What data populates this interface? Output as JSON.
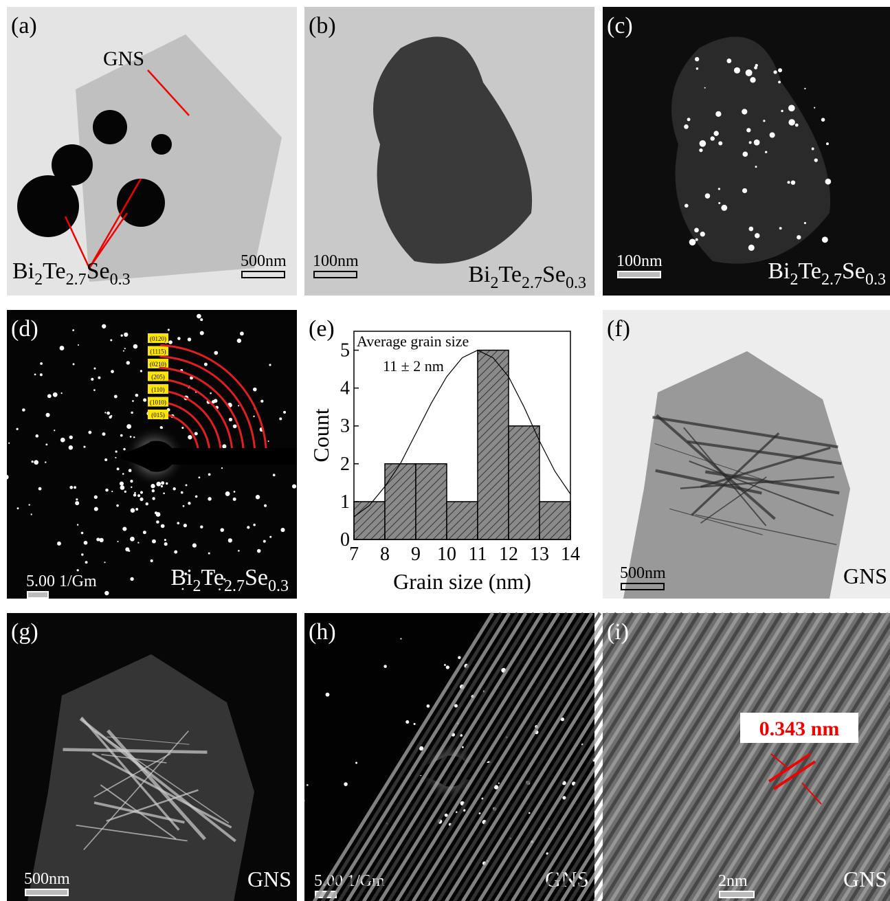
{
  "panels": [
    {
      "label": "(a)",
      "texts": [
        "GNS"
      ],
      "formula": [
        "Bi",
        "2",
        "Te",
        "2.7",
        "Se",
        "0.3"
      ],
      "scale": "500nm"
    },
    {
      "label": "(b)",
      "formula": [
        "Bi",
        "2",
        "Te",
        "2.7",
        "Se",
        "0.3"
      ],
      "scale": "100nm"
    },
    {
      "label": "(c)",
      "formula": [
        "Bi",
        "2",
        "Te",
        "2.7",
        "Se",
        "0.3"
      ],
      "scale": "100nm"
    },
    {
      "label": "(d)",
      "formula": [
        "Bi",
        "2",
        "Te",
        "2.7",
        "Se",
        "0.3"
      ],
      "scale": "5.00 1/Gm",
      "rings": [
        "(0120)",
        "(1115)",
        "(0210)",
        "(205)",
        "(110)",
        "(1010)",
        "(015)"
      ]
    },
    {
      "label": "(e)"
    },
    {
      "label": "(f)",
      "texts": [
        "GNS"
      ],
      "scale": "500nm"
    },
    {
      "label": "(g)",
      "texts": [
        "GNS"
      ],
      "scale": "500nm"
    },
    {
      "label": "(h)",
      "texts": [
        "GNS"
      ],
      "scale": "5.00 1/Gm"
    },
    {
      "label": "(i)",
      "texts": [
        "GNS",
        "0.343 nm"
      ],
      "scale": "2nm"
    }
  ],
  "chart_data": {
    "type": "histogram",
    "xlabel": "Grain size (nm)",
    "ylabel": "Count",
    "annotations": [
      "Average grain size",
      "11 ± 2 nm"
    ],
    "bins": [
      7,
      8,
      9,
      10,
      11,
      12,
      13,
      14
    ],
    "values": [
      1,
      2,
      2,
      1,
      5,
      3,
      1
    ],
    "color": "#8a8a8a",
    "fit": {
      "x": [
        7,
        7.5,
        8,
        8.5,
        9,
        9.5,
        10,
        10.5,
        11,
        11.5,
        12,
        12.5,
        13,
        13.5,
        14
      ],
      "y": [
        0.6,
        0.9,
        1.4,
        2.0,
        2.8,
        3.6,
        4.3,
        4.8,
        5.0,
        4.8,
        4.3,
        3.5,
        2.6,
        1.8,
        1.2
      ]
    },
    "xlim": [
      7,
      14
    ],
    "ylim": [
      0,
      5.5
    ],
    "xticks": [
      7,
      8,
      9,
      10,
      11,
      12,
      13,
      14
    ],
    "yticks": [
      0,
      1,
      2,
      3,
      4,
      5
    ]
  }
}
